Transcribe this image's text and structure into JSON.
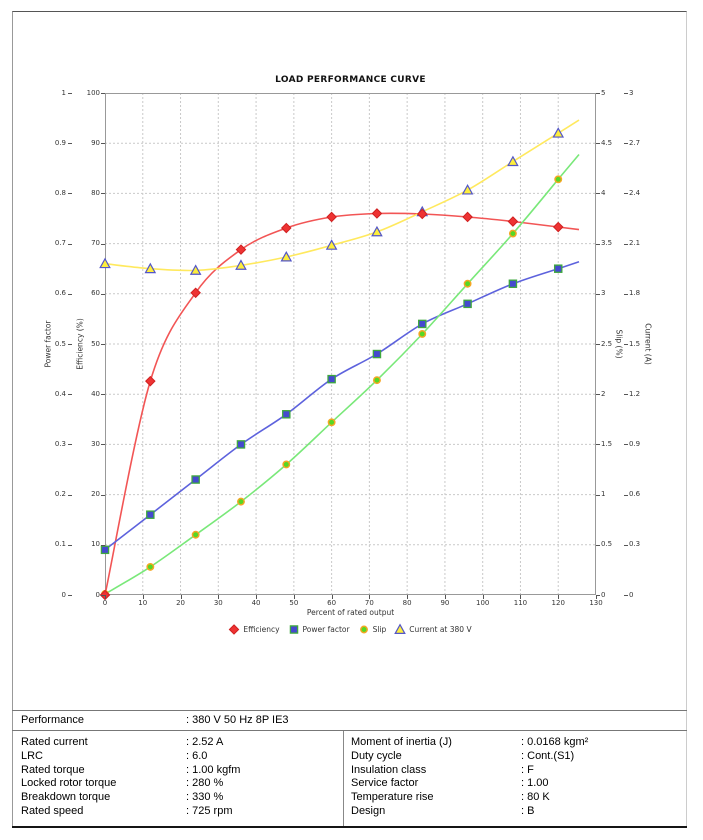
{
  "chart_data": {
    "type": "line",
    "title": "LOAD PERFORMANCE CURVE",
    "xlabel": "Percent of rated output",
    "xlim": [
      0,
      130
    ],
    "x_tick_labels": [
      "0",
      "10",
      "20",
      "30",
      "40",
      "50",
      "60",
      "70",
      "80",
      "90",
      "100",
      "110",
      "120",
      "130"
    ],
    "grid": true,
    "legend_position": "bottom",
    "curve_extend_to_x": 125.5,
    "x": [
      0,
      12,
      24,
      36,
      48,
      60,
      72,
      84,
      96,
      108,
      120
    ],
    "series": [
      {
        "name": "Efficiency",
        "axis": "efficiency",
        "marker": "diamond",
        "values": [
          0,
          42.6,
          60.2,
          68.8,
          73.1,
          75.3,
          76.0,
          75.9,
          75.3,
          74.4,
          73.3
        ],
        "line_color": "#f25555",
        "marker_fill": "#ee3333",
        "marker_stroke": "#d02020"
      },
      {
        "name": "Power factor",
        "axis": "power_factor",
        "marker": "square",
        "values": [
          0.09,
          0.16,
          0.23,
          0.3,
          0.36,
          0.43,
          0.48,
          0.54,
          0.58,
          0.62,
          0.65
        ],
        "line_color": "#5d62dd",
        "marker_fill": "#4549cf",
        "marker_stroke": "#3fa83f"
      },
      {
        "name": "Slip",
        "axis": "slip",
        "marker": "circle",
        "values": [
          0.01,
          0.28,
          0.6,
          0.93,
          1.3,
          1.72,
          2.14,
          2.6,
          3.1,
          3.6,
          4.14
        ],
        "line_color": "#79e879",
        "marker_fill": "#55d824",
        "marker_stroke": "#f5a623"
      },
      {
        "name": "Current at 380 V",
        "axis": "current",
        "marker": "triangle",
        "values": [
          1.98,
          1.95,
          1.94,
          1.97,
          2.02,
          2.09,
          2.17,
          2.29,
          2.42,
          2.59,
          2.76
        ],
        "line_color": "#ffe95e",
        "marker_fill": "#fdee3c",
        "marker_stroke": "#5356c8"
      }
    ],
    "axes": {
      "power_factor": {
        "label": "Power factor",
        "min": 0,
        "max": 1,
        "tick_labels": [
          "0",
          "0.1",
          "0.2",
          "0.3",
          "0.4",
          "0.5",
          "0.6",
          "0.7",
          "0.8",
          "0.9",
          "1"
        ]
      },
      "efficiency": {
        "label": "Efficiency (%)",
        "min": 0,
        "max": 100,
        "tick_labels": [
          "0",
          "10",
          "20",
          "30",
          "40",
          "50",
          "60",
          "70",
          "80",
          "90",
          "100"
        ]
      },
      "slip": {
        "label": "Slip (%)",
        "min": 0,
        "max": 5,
        "tick_labels": [
          "0",
          "0.5",
          "1",
          "1.5",
          "2",
          "2.5",
          "3",
          "3.5",
          "4",
          "4.5",
          "5"
        ]
      },
      "current": {
        "label": "Current (A)",
        "min": 0,
        "max": 3,
        "tick_labels": [
          "0",
          "0.3",
          "0.6",
          "0.9",
          "1.2",
          "1.5",
          "1.8",
          "2.1",
          "2.4",
          "2.7",
          "3"
        ]
      }
    }
  },
  "table": {
    "colon": ":",
    "performance": {
      "label": "Performance",
      "value": "380 V 50 Hz 8P IE3"
    },
    "left_rows": [
      {
        "label": "Rated current",
        "value": "2.52 A"
      },
      {
        "label": "LRC",
        "value": "6.0"
      },
      {
        "label": "Rated torque",
        "value": "1.00 kgfm"
      },
      {
        "label": "Locked rotor torque",
        "value": "280 %"
      },
      {
        "label": "Breakdown torque",
        "value": "330 %"
      },
      {
        "label": "Rated speed",
        "value": "725 rpm"
      }
    ],
    "right_rows": [
      {
        "label": "Moment of inertia (J)",
        "value": "0.0168 kgm²"
      },
      {
        "label": "Duty cycle",
        "value": "Cont.(S1)"
      },
      {
        "label": "Insulation class",
        "value": "F"
      },
      {
        "label": "Service factor",
        "value": "1.00"
      },
      {
        "label": "Temperature rise",
        "value": "80 K"
      },
      {
        "label": "Design",
        "value": "B"
      }
    ]
  }
}
